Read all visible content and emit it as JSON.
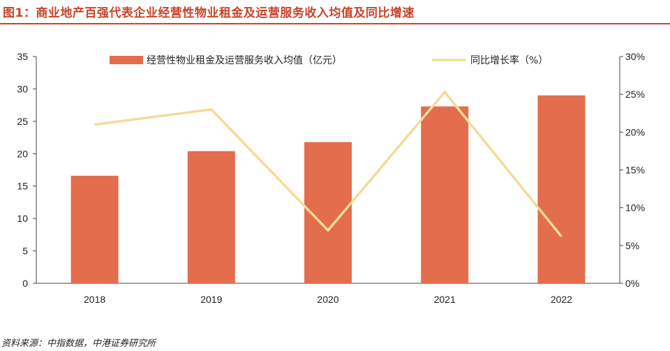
{
  "figure": {
    "title": "图1：商业地产百强代表企业经营性物业租金及运营服务收入均值及同比增速",
    "source": "资料来源：中指数据，中港证券研究所"
  },
  "chart_data": {
    "type": "bar",
    "categories": [
      "2018",
      "2019",
      "2020",
      "2021",
      "2022"
    ],
    "series": [
      {
        "name": "经营性物业租金及运营服务收入均值（亿元）",
        "type": "bar",
        "axis": "left",
        "color": "#e36d4d",
        "values": [
          16.6,
          20.4,
          21.8,
          27.3,
          29.0
        ]
      },
      {
        "name": "同比增长率（%）",
        "type": "line",
        "axis": "right",
        "color": "#f2dc97",
        "values": [
          21.0,
          23.0,
          7.0,
          25.3,
          6.2
        ]
      }
    ],
    "left_axis": {
      "min": 0,
      "max": 35,
      "ticks": [
        "0",
        "5",
        "10",
        "15",
        "20",
        "25",
        "30",
        "35"
      ]
    },
    "right_axis": {
      "min": 0,
      "max": 30,
      "ticks": [
        "0%",
        "5%",
        "10%",
        "15%",
        "20%",
        "25%",
        "30%"
      ]
    },
    "grid": false,
    "legend_position": "top"
  }
}
